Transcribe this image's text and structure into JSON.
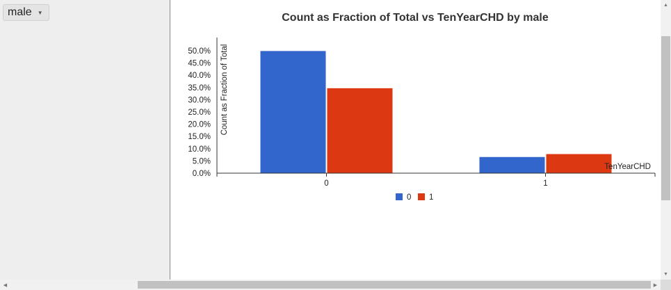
{
  "sidebar": {
    "dropdown": {
      "selected": "male",
      "arrow": "▼"
    }
  },
  "chart_data": {
    "type": "bar",
    "title": "Count as Fraction of Total vs TenYearCHD by male",
    "xlabel": "TenYearCHD",
    "ylabel": "Count as Fraction of Total",
    "categories": [
      "0",
      "1"
    ],
    "series": [
      {
        "name": "0",
        "color": "#3366cc",
        "values": [
          0.499,
          0.066
        ]
      },
      {
        "name": "1",
        "color": "#dc3912",
        "values": [
          0.347,
          0.078
        ]
      }
    ],
    "ylim": [
      0,
      0.5
    ],
    "yticks": [
      "0.0%",
      "5.0%",
      "10.0%",
      "15.0%",
      "20.0%",
      "25.0%",
      "30.0%",
      "35.0%",
      "40.0%",
      "45.0%",
      "50.0%"
    ],
    "legend_position": "bottom",
    "grid": false
  },
  "scrollbars": {
    "up_icon": "▲",
    "down_icon": "▼",
    "left_icon": "◀",
    "right_icon": "▶"
  }
}
